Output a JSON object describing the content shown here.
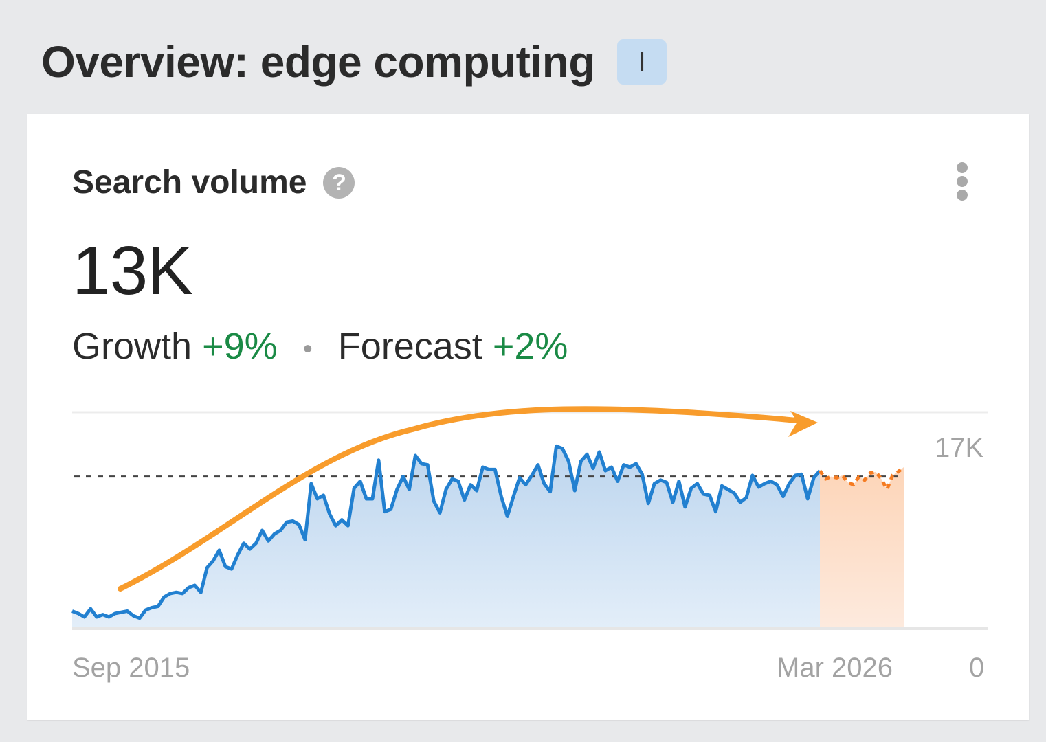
{
  "header": {
    "title": "Overview: edge computing",
    "intent_badge": "I"
  },
  "card": {
    "title": "Search volume",
    "help_icon": "?",
    "value": "13K",
    "growth_label": "Growth",
    "growth_value": "+9%",
    "separator": "•",
    "forecast_label": "Forecast",
    "forecast_value": "+2%"
  },
  "colors": {
    "line": "#2280d0",
    "area_top": "#bcd5ee",
    "area_bottom": "#e3eef9",
    "forecast_line": "#f57c22",
    "forecast_area": "#fddcc4",
    "annotation_arrow": "#f89c2c",
    "positive": "#1a8a45"
  },
  "chart_data": {
    "type": "line",
    "title": "Search volume",
    "xlabel": "",
    "ylabel": "",
    "x_start_label": "Sep 2015",
    "x_end_label": "Mar 2026",
    "y_max_label": "17K",
    "y_min_label": "0",
    "ylim": [
      0,
      17000
    ],
    "average_line": 13000,
    "series": [
      {
        "name": "Search volume (historical)",
        "values": [
          1500,
          1300,
          1000,
          1700,
          1000,
          1200,
          1000,
          1300,
          1400,
          1500,
          1100,
          900,
          1600,
          1800,
          1900,
          2700,
          3000,
          3100,
          3000,
          3500,
          3700,
          3100,
          5200,
          5800,
          6700,
          5300,
          5100,
          6300,
          7300,
          6800,
          7300,
          8400,
          7500,
          8100,
          8400,
          9100,
          9200,
          8900,
          7600,
          12400,
          11100,
          11400,
          9800,
          8800,
          9300,
          8800,
          12000,
          12600,
          11100,
          11100,
          14400,
          10000,
          10200,
          11900,
          13000,
          11900,
          14800,
          14100,
          14000,
          10900,
          9900,
          11900,
          12800,
          12600,
          11000,
          12300,
          11800,
          13800,
          13600,
          13600,
          11300,
          9600,
          11300,
          12900,
          12300,
          13100,
          14000,
          12400,
          11700,
          15600,
          15400,
          14300,
          11800,
          14300,
          14900,
          13700,
          15100,
          13500,
          13800,
          12600,
          14000,
          13800,
          14100,
          13200,
          10700,
          12400,
          12700,
          12500,
          10800,
          12600,
          10400,
          12000,
          12400,
          11500,
          11400,
          10000,
          12200,
          11900,
          11600,
          10800,
          11200,
          13100,
          12100,
          12400,
          12600,
          12300,
          11300,
          12400,
          13100,
          13200,
          11100,
          12900,
          13500
        ]
      },
      {
        "name": "Forecast",
        "values": [
          13500,
          12800,
          13000,
          12900,
          13100,
          12500,
          12300,
          13000,
          12700,
          13300,
          13400,
          12800,
          11900,
          13100,
          13400,
          13800
        ]
      }
    ],
    "annotation": "orange arrow showing rising then plateau trend"
  }
}
